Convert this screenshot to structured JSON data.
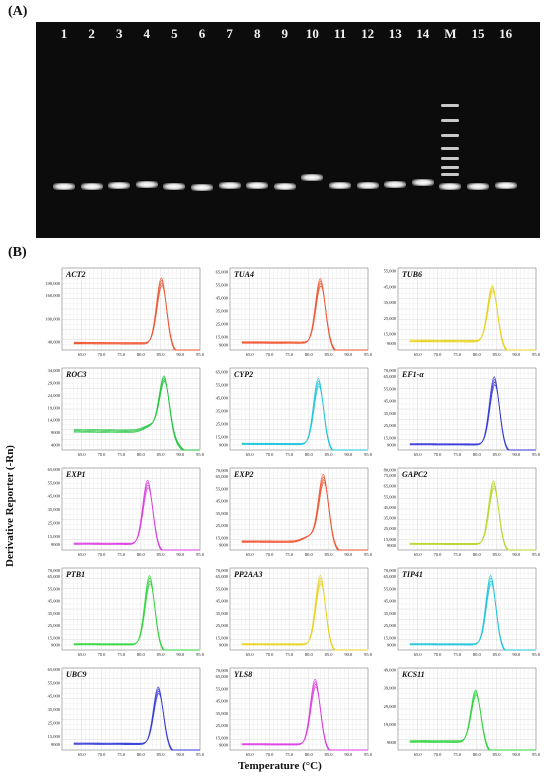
{
  "panel_a": {
    "label": "(A)",
    "lanes": [
      {
        "label": "1",
        "band_y": 0.745
      },
      {
        "label": "2",
        "band_y": 0.745
      },
      {
        "label": "3",
        "band_y": 0.74
      },
      {
        "label": "4",
        "band_y": 0.735
      },
      {
        "label": "5",
        "band_y": 0.745
      },
      {
        "label": "6",
        "band_y": 0.748
      },
      {
        "label": "7",
        "band_y": 0.74
      },
      {
        "label": "8",
        "band_y": 0.74
      },
      {
        "label": "9",
        "band_y": 0.745
      },
      {
        "label": "10",
        "band_y": 0.705
      },
      {
        "label": "11",
        "band_y": 0.74
      },
      {
        "label": "12",
        "band_y": 0.742
      },
      {
        "label": "13",
        "band_y": 0.735
      },
      {
        "label": "14",
        "band_y": 0.725
      },
      {
        "label": "M",
        "marker": true,
        "band_y": 0.745
      },
      {
        "label": "15",
        "band_y": 0.745
      },
      {
        "label": "16",
        "band_y": 0.742
      }
    ]
  },
  "panel_b": {
    "label": "(B)",
    "ylabel": "Derivative Reporter (-Rn)",
    "xlabel": "Temperature (°C)",
    "x_ticks": [
      "65.0",
      "70.0",
      "75.0",
      "80.0",
      "85.0",
      "90.0",
      "95.0"
    ]
  },
  "chart_data": [
    {
      "type": "line",
      "title": "ACT2",
      "color": "#f0522d",
      "peak_x": 85.3,
      "peak_y": 205000,
      "base_y": 35000,
      "shoulder": 0,
      "y_ticks": [
        "40,000",
        "100,000",
        "160,000",
        "190,000"
      ],
      "ylim": [
        20000,
        230000
      ]
    },
    {
      "type": "line",
      "title": "TUA4",
      "color": "#f0522d",
      "peak_x": 83.0,
      "peak_y": 60000,
      "base_y": 10000,
      "shoulder": 0,
      "y_ticks": [
        "9000",
        "15,000",
        "25,000",
        "35,000",
        "45,000",
        "55,000",
        "65,000"
      ],
      "ylim": [
        5000,
        68000
      ]
    },
    {
      "type": "line",
      "title": "TUB6",
      "color": "#e8d21c",
      "peak_x": 84.0,
      "peak_y": 46000,
      "base_y": 10000,
      "shoulder": 0,
      "y_ticks": [
        "9000",
        "15,000",
        "25,000",
        "35,000",
        "45,000",
        "55,000"
      ],
      "ylim": [
        5000,
        57000
      ]
    },
    {
      "type": "line",
      "title": "ROC3",
      "color": "#1ec43c",
      "peak_x": 86.0,
      "peak_y": 31000,
      "base_y": 9000,
      "shoulder": 0.12,
      "y_ticks": [
        "4000",
        "9000",
        "14,000",
        "19,000",
        "24,000",
        "29,000",
        "34,000"
      ],
      "ylim": [
        2000,
        35000
      ]
    },
    {
      "type": "line",
      "title": "CYP2",
      "color": "#1cc4d8",
      "peak_x": 82.5,
      "peak_y": 60000,
      "base_y": 9000,
      "shoulder": 0,
      "y_ticks": [
        "9000",
        "15,000",
        "25,000",
        "35,000",
        "45,000",
        "55,000",
        "65,000"
      ],
      "ylim": [
        5000,
        68000
      ]
    },
    {
      "type": "line",
      "title": "EF1-α",
      "color": "#3338d6",
      "peak_x": 84.5,
      "peak_y": 65000,
      "base_y": 9000,
      "shoulder": 0,
      "y_ticks": [
        "9000",
        "15,000",
        "25,000",
        "35,000",
        "45,000",
        "55,000",
        "65,000",
        "70,000"
      ],
      "ylim": [
        5000,
        72000
      ]
    },
    {
      "type": "line",
      "title": "EXP1",
      "color": "#dc3ce0",
      "peak_x": 81.8,
      "peak_y": 57000,
      "base_y": 9000,
      "shoulder": 0,
      "y_ticks": [
        "9000",
        "15,000",
        "25,000",
        "35,000",
        "45,000",
        "55,000",
        "65,000"
      ],
      "ylim": [
        5000,
        66000
      ]
    },
    {
      "type": "line",
      "title": "EXP2",
      "color": "#f0522d",
      "peak_x": 83.8,
      "peak_y": 65000,
      "base_y": 11000,
      "shoulder": 0.1,
      "y_ticks": [
        "9000",
        "15,000",
        "25,000",
        "35,000",
        "45,000",
        "55,000",
        "65,000",
        "70,000"
      ],
      "ylim": [
        5000,
        72000
      ]
    },
    {
      "type": "line",
      "title": "GAPC2",
      "color": "#b8d62a",
      "peak_x": 84.3,
      "peak_y": 70000,
      "base_y": 10000,
      "shoulder": 0,
      "y_ticks": [
        "9000",
        "15,000",
        "25,000",
        "35,000",
        "45,000",
        "55,000",
        "65,000",
        "75,000",
        "80,000"
      ],
      "ylim": [
        5000,
        82000
      ]
    },
    {
      "type": "line",
      "title": "PTB1",
      "color": "#2ed43c",
      "peak_x": 82.3,
      "peak_y": 66000,
      "base_y": 9000,
      "shoulder": 0,
      "y_ticks": [
        "9000",
        "15,000",
        "25,000",
        "35,000",
        "45,000",
        "55,000",
        "65,000",
        "70,000"
      ],
      "ylim": [
        5000,
        72000
      ]
    },
    {
      "type": "line",
      "title": "PP2AA3",
      "color": "#e8d21c",
      "peak_x": 83.0,
      "peak_y": 66000,
      "base_y": 9000,
      "shoulder": 0,
      "y_ticks": [
        "9000",
        "15,000",
        "25,000",
        "35,000",
        "45,000",
        "55,000",
        "65,000",
        "70,000"
      ],
      "ylim": [
        5000,
        72000
      ]
    },
    {
      "type": "line",
      "title": "TIP41",
      "color": "#1cc4d8",
      "peak_x": 83.6,
      "peak_y": 66000,
      "base_y": 9000,
      "shoulder": 0,
      "y_ticks": [
        "9000",
        "15,000",
        "25,000",
        "35,000",
        "45,000",
        "55,000",
        "65,000",
        "70,000"
      ],
      "ylim": [
        5000,
        72000
      ]
    },
    {
      "type": "line",
      "title": "UBC9",
      "color": "#3338d6",
      "peak_x": 84.5,
      "peak_y": 52000,
      "base_y": 9000,
      "shoulder": 0,
      "y_ticks": [
        "9000",
        "15,000",
        "25,000",
        "35,000",
        "45,000",
        "55,000",
        "65,000"
      ],
      "ylim": [
        5000,
        66000
      ]
    },
    {
      "type": "line",
      "title": "YLS8",
      "color": "#dc3ce0",
      "peak_x": 81.7,
      "peak_y": 63000,
      "base_y": 9000,
      "shoulder": 0,
      "y_ticks": [
        "9000",
        "15,000",
        "25,000",
        "35,000",
        "45,000",
        "55,000",
        "65,000",
        "70,000"
      ],
      "ylim": [
        5000,
        72000
      ]
    },
    {
      "type": "line",
      "title": "KCS11",
      "color": "#2ed43c",
      "peak_x": 79.8,
      "peak_y": 38000,
      "base_y": 9000,
      "shoulder": 0,
      "y_ticks": [
        "9000",
        "19,000",
        "29,000",
        "39,000",
        "49,000"
      ],
      "ylim": [
        5000,
        50000
      ]
    }
  ]
}
